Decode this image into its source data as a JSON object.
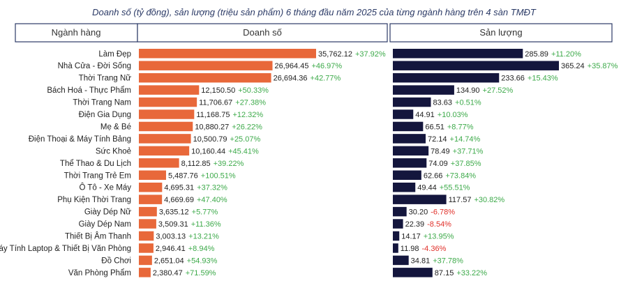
{
  "chart_data": {
    "type": "bar",
    "title": "Doanh số (tỷ đồng), sản lượng (triệu sản phẩm) 6 tháng đầu năm 2025 của từng ngành hàng trên 4 sàn TMĐT",
    "column_headers": [
      "Ngành hàng",
      "Doanh số",
      "Sản lượng"
    ],
    "categories": [
      "Làm Đẹp",
      "Nhà Cửa - Đời Sống",
      "Thời Trang Nữ",
      "Bách Hoá - Thực Phẩm",
      "Thời Trang Nam",
      "Điện Gia Dụng",
      "Mẹ & Bé",
      "Điện Thoại & Máy Tính Bảng",
      "Sức Khoẻ",
      "Thể Thao & Du Lịch",
      "Thời Trang Trẻ Em",
      "Ô Tô - Xe Máy",
      "Phụ Kiện Thời Trang",
      "Giày Dép Nữ",
      "Giày Dép Nam",
      "Thiết Bị Âm Thanh",
      "Máy Tính  Laptop & Thiết Bị Văn Phòng",
      "Đồ Chơi",
      "Văn Phòng Phẩm"
    ],
    "series": [
      {
        "name": "Doanh số",
        "color": "#e8683a",
        "values": [
          35762.12,
          26964.45,
          26694.36,
          12150.5,
          11706.67,
          11168.75,
          10880.27,
          10500.79,
          10160.44,
          8112.85,
          5487.76,
          4695.31,
          4669.69,
          3635.12,
          3509.31,
          3003.13,
          2946.41,
          2651.04,
          2380.47
        ],
        "value_labels": [
          "35,762.12",
          "26,964.45",
          "26,694.36",
          "12,150.50",
          "11,706.67",
          "11,168.75",
          "10,880.27",
          "10,500.79",
          "10,160.44",
          "8,112.85",
          "5,487.76",
          "4,695.31",
          "4,669.69",
          "3,635.12",
          "3,509.31",
          "3,003.13",
          "2,946.41",
          "2,651.04",
          "2,380.47"
        ],
        "growth_labels": [
          "+37.92%",
          "+46.97%",
          "+42.77%",
          "+50.33%",
          "+27.38%",
          "+12.32%",
          "+26.22%",
          "+25.07%",
          "+45.41%",
          "+39.22%",
          "+100.51%",
          "+37.32%",
          "+47.40%",
          "+5.77%",
          "+11.36%",
          "+13.21%",
          "+8.94%",
          "+54.93%",
          "+71.59%"
        ]
      },
      {
        "name": "Sản lượng",
        "color": "#14163d",
        "values": [
          285.89,
          365.24,
          233.66,
          134.9,
          83.63,
          44.91,
          66.51,
          72.14,
          78.49,
          74.09,
          62.66,
          49.44,
          117.57,
          30.2,
          22.39,
          14.17,
          11.98,
          34.81,
          87.15
        ],
        "value_labels": [
          "285.89",
          "365.24",
          "233.66",
          "134.90",
          "83.63",
          "44.91",
          "66.51",
          "72.14",
          "78.49",
          "74.09",
          "62.66",
          "49.44",
          "117.57",
          "30.20",
          "22.39",
          "14.17",
          "11.98",
          "34.81",
          "87.15"
        ],
        "growth_labels": [
          "+11.20%",
          "+35.87%",
          "+15.43%",
          "+27.52%",
          "+0.51%",
          "+10.03%",
          "+8.77%",
          "+14.74%",
          "+37.71%",
          "+37.85%",
          "+73.84%",
          "+55.51%",
          "+30.82%",
          "-6.78%",
          "-8.54%",
          "+13.95%",
          "-4.36%",
          "+37.78%",
          "+33.22%"
        ]
      }
    ],
    "growth_colors": {
      "positive": "#3daa4a",
      "negative": "#e0302a"
    },
    "header_border_color": "#2b3a66",
    "legend": "none",
    "grid": false
  }
}
